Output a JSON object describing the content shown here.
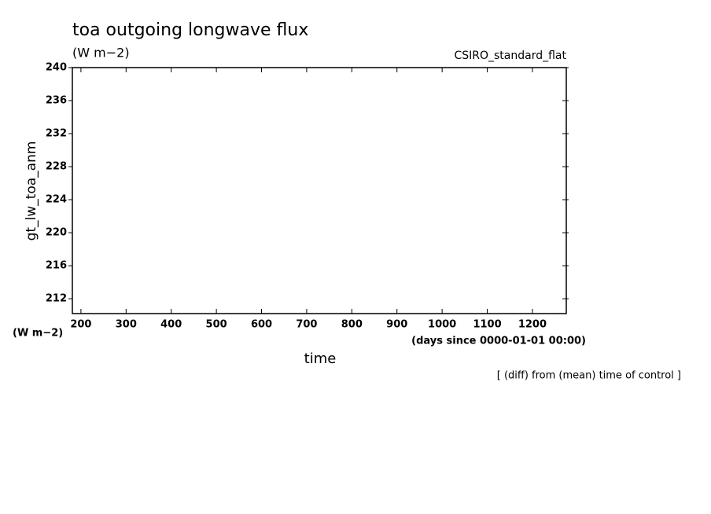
{
  "chart_data": {
    "type": "line",
    "title": "toa outgoing longwave flux",
    "title_units": "(W m−2)",
    "subtitle": "CSIRO_standard_flat",
    "y_label": "gt_lw_toa_anm",
    "y_units": "(W m−2)",
    "x_label": "time",
    "x_units": "(days since 0000-01-01 00:00)",
    "note": "[ (diff) from (mean) time of control ]",
    "series": [],
    "xlim": [
      181,
      1275
    ],
    "xticks": [
      200,
      300,
      400,
      500,
      600,
      700,
      800,
      900,
      1000,
      1100,
      1200
    ],
    "ylim": [
      210.2,
      240
    ],
    "yticks": [
      212,
      216,
      220,
      224,
      228,
      232,
      236,
      240
    ],
    "grid": false
  }
}
